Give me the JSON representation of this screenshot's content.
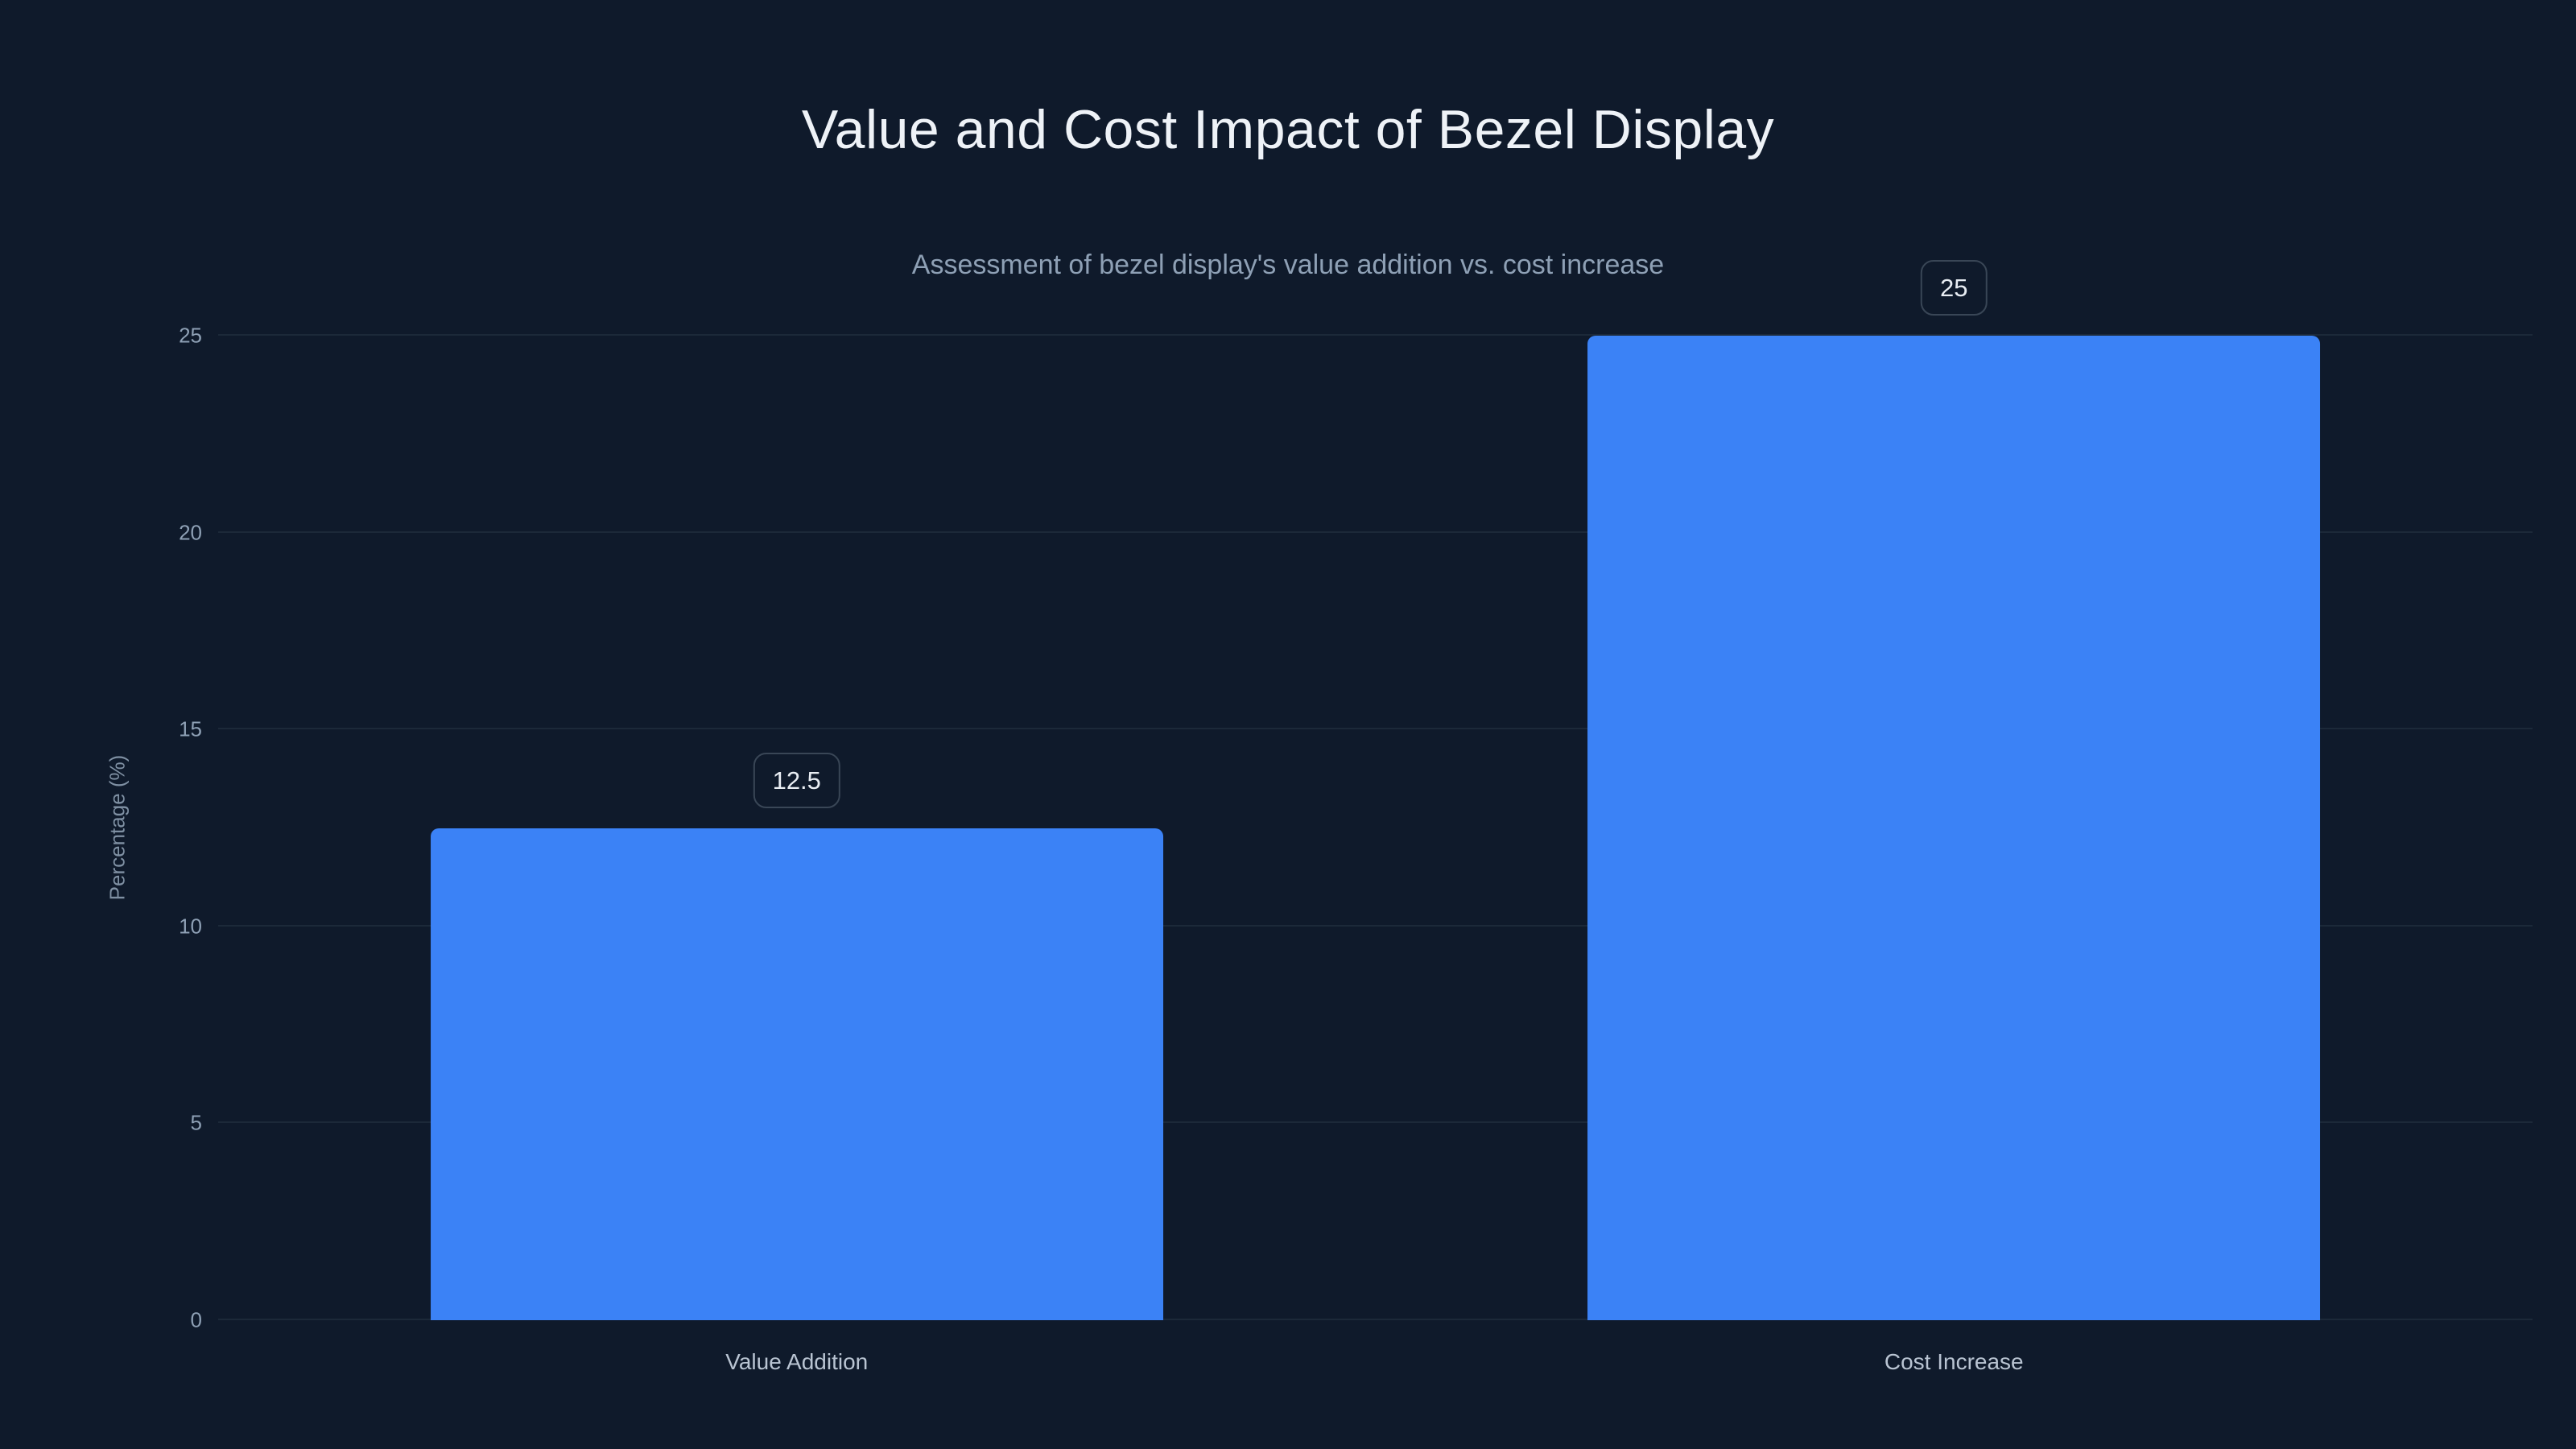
{
  "page": {
    "background_color": "#0f1a2b"
  },
  "chart_data": {
    "type": "bar",
    "title": "Value and Cost Impact of Bezel Display",
    "subtitle": "Assessment of bezel display's value addition vs. cost increase",
    "categories": [
      "Value Addition",
      "Cost Increase"
    ],
    "values": [
      12.5,
      25
    ],
    "value_labels": [
      "12.5",
      "25"
    ],
    "xlabel": "",
    "ylabel": "Percentage (%)",
    "ylim": [
      0,
      25
    ],
    "yticks": [
      0,
      5,
      10,
      15,
      20,
      25
    ],
    "grid": true,
    "legend_position": "none",
    "bar_color": "#3b82f6",
    "grid_color": "#1c2939",
    "tick_color": "#8ea0b5"
  }
}
